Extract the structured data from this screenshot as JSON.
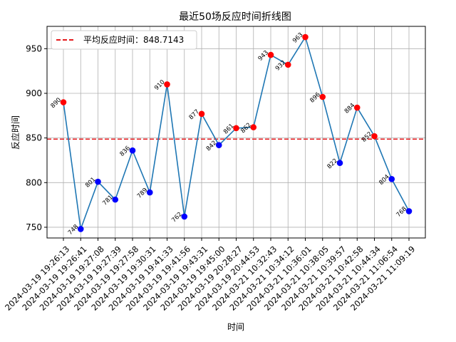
{
  "chart_data": {
    "type": "line",
    "title": "最近50场反应时间折线图",
    "xlabel": "时间",
    "ylabel": "反应时间",
    "ylim": [
      738,
      975
    ],
    "yticks": [
      750,
      800,
      850,
      900,
      950
    ],
    "grid": true,
    "legend": {
      "placement": "top-left",
      "label": "平均反应时间：848.7143"
    },
    "average": 848.7143,
    "series_color": "#1f77b4",
    "average_color": "#e41a1c",
    "below_color": "#0000ff",
    "above_color": "#ff0000",
    "x": [
      "2024-03-19 19:26:13",
      "2024-03-19 19:26:41",
      "2024-03-19 19:27:08",
      "2024-03-19 19:27:39",
      "2024-03-19 19:27:58",
      "2024-03-19 19:30:31",
      "2024-03-19 19:41:33",
      "2024-03-19 19:41:56",
      "2024-03-19 19:43:31",
      "2024-03-19 19:45:00",
      "2024-03-19 20:28:27",
      "2024-03-19 20:44:53",
      "2024-03-21 10:32:43",
      "2024-03-21 10:34:12",
      "2024-03-21 10:36:01",
      "2024-03-21 10:38:05",
      "2024-03-21 10:39:57",
      "2024-03-21 10:42:58",
      "2024-03-21 10:44:34",
      "2024-03-21 11:06:54",
      "2024-03-21 11:09:19"
    ],
    "values": [
      890,
      748,
      801,
      781,
      836,
      789,
      910,
      762,
      877,
      842,
      861,
      862,
      943,
      932,
      963,
      896,
      822,
      884,
      852,
      804,
      768
    ],
    "point_labels": [
      "890",
      "748",
      "801",
      "781",
      "836",
      "789",
      "910",
      "762",
      "877",
      "842",
      "861",
      "862",
      "943",
      "932",
      "963",
      "896",
      "822",
      "884",
      "852",
      "804",
      "768"
    ]
  }
}
